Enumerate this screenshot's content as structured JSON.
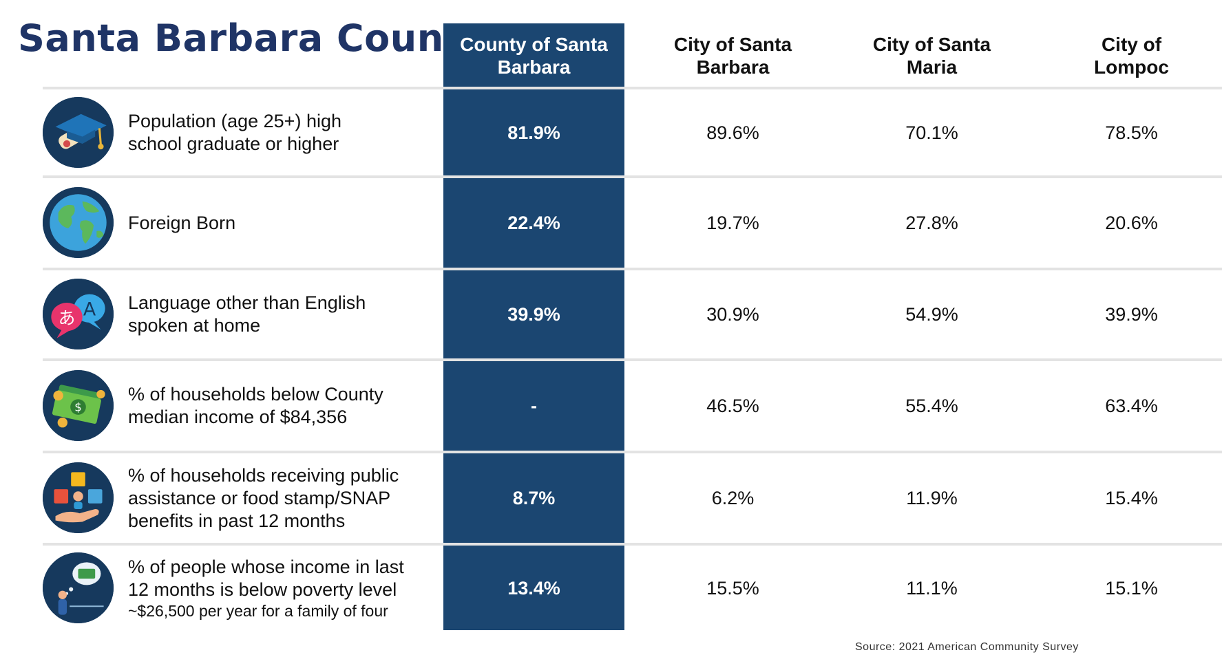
{
  "title": "Santa Barbara County",
  "source": "Source: 2021 American Community Survey",
  "colors": {
    "title": "#1f3466",
    "county_column": "#1b4671",
    "icon_circle": "#16395d",
    "divider": "#e3e3e3"
  },
  "chart_data": {
    "type": "table",
    "columns": [
      "County of Santa Barbara",
      "City of Santa Barbara",
      "City of Santa Maria",
      "City of Lompoc"
    ],
    "column_lines": [
      [
        "County of Santa",
        "Barbara"
      ],
      [
        "City of Santa",
        "Barbara"
      ],
      [
        "City of Santa",
        "Maria"
      ],
      [
        "City of",
        "Lompoc"
      ]
    ],
    "rows": [
      {
        "icon": "graduation-cap-diploma-icon",
        "label_lines": [
          "Population (age 25+) high",
          "school graduate or higher"
        ],
        "values": [
          "81.9%",
          "89.6%",
          "70.1%",
          "78.5%"
        ]
      },
      {
        "icon": "globe-icon",
        "label_lines": [
          "Foreign Born"
        ],
        "values": [
          "22.4%",
          "19.7%",
          "27.8%",
          "20.6%"
        ]
      },
      {
        "icon": "speech-bubbles-language-icon",
        "label_lines": [
          "Language other than English",
          "spoken at home"
        ],
        "values": [
          "39.9%",
          "30.9%",
          "54.9%",
          "39.9%"
        ]
      },
      {
        "icon": "money-bills-coins-icon",
        "label_lines": [
          "% of households below County",
          "median income of $84,356"
        ],
        "values": [
          "-",
          "46.5%",
          "55.4%",
          "63.4%"
        ]
      },
      {
        "icon": "public-assistance-hand-icon",
        "label_lines": [
          "% of households receiving public",
          "assistance or food stamp/SNAP",
          "benefits in past 12 months"
        ],
        "values": [
          "8.7%",
          "6.2%",
          "11.9%",
          "15.4%"
        ]
      },
      {
        "icon": "person-thinking-money-icon",
        "label_lines": [
          "% of people whose income in last",
          "12 months is below poverty level"
        ],
        "label_sub": "~$26,500 per year for a family of four",
        "values": [
          "13.4%",
          "15.5%",
          "11.1%",
          "15.1%"
        ]
      }
    ]
  }
}
